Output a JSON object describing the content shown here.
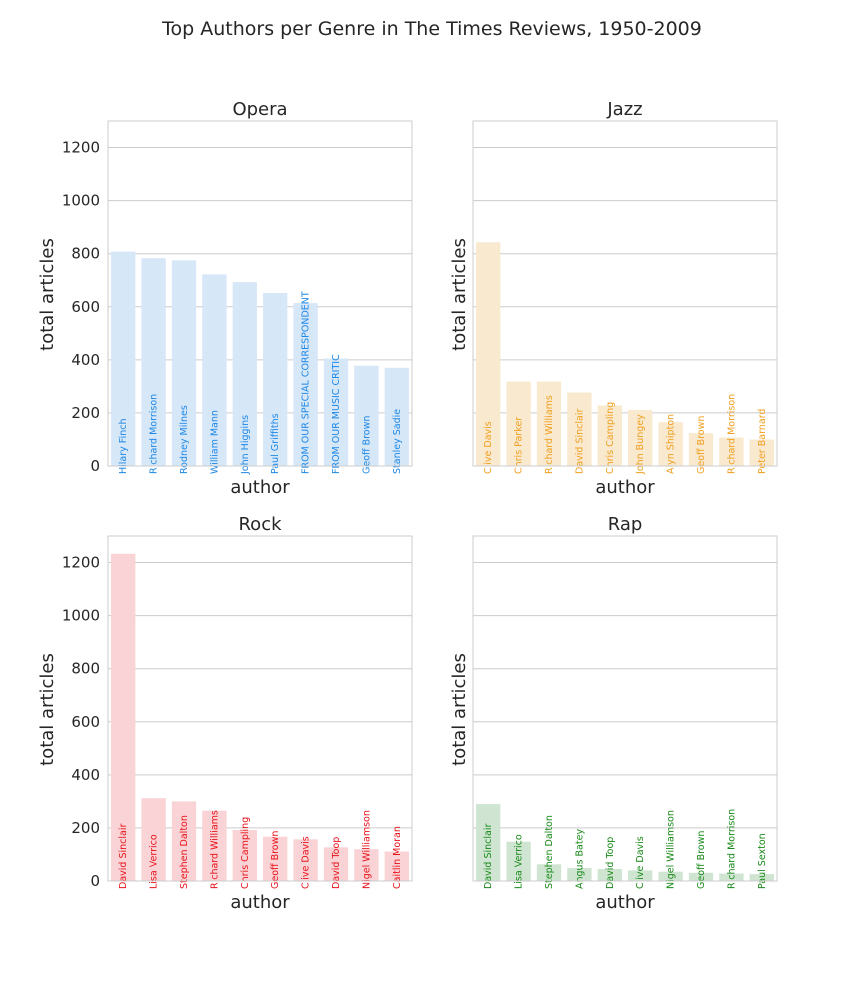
{
  "title": "Top Authors per Genre in The Times Reviews, 1950-2009",
  "chart_data": [
    {
      "type": "bar",
      "title": "Opera",
      "xlabel": "author",
      "ylabel": "total articles",
      "ylim": [
        0,
        1300
      ],
      "yticks": [
        0,
        200,
        400,
        600,
        800,
        1000,
        1200
      ],
      "grid": true,
      "bar_color": "#d6e7f8",
      "label_color": "#1e88e5",
      "categories": [
        "Hilary Finch",
        "Richard Morrison",
        "Rodney Milnes",
        "William Mann",
        "John Higgins",
        "Paul Griffiths",
        "FROM OUR SPECIAL CORRESPONDENT",
        "FROM OUR MUSIC CRITIC",
        "Geoff Brown",
        "Stanley Sadie"
      ],
      "values": [
        808,
        783,
        775,
        722,
        693,
        652,
        614,
        405,
        378,
        370
      ]
    },
    {
      "type": "bar",
      "title": "Jazz",
      "xlabel": "author",
      "ylabel": "total articles",
      "ylim": [
        0,
        1300
      ],
      "yticks": [
        0,
        200,
        400,
        600,
        800,
        1000,
        1200
      ],
      "grid": true,
      "bar_color": "#f8e9cf",
      "label_color": "#f0a020",
      "categories": [
        "Clive Davis",
        "Chris Parker",
        "Richard Williams",
        "David Sinclair",
        "Chris Campling",
        "John Bungey",
        "Alyn Shipton",
        "Geoff Brown",
        "Richard Morrison",
        "Peter Barnard"
      ],
      "values": [
        843,
        318,
        318,
        277,
        228,
        211,
        165,
        124,
        107,
        100
      ]
    },
    {
      "type": "bar",
      "title": "Rock",
      "xlabel": "author",
      "ylabel": "total articles",
      "ylim": [
        0,
        1300
      ],
      "yticks": [
        0,
        200,
        400,
        600,
        800,
        1000,
        1200
      ],
      "grid": true,
      "bar_color": "#f9d3d5",
      "label_color": "#e8141c",
      "categories": [
        "David Sinclair",
        "Lisa Verrico",
        "Stephen Dalton",
        "Richard Williams",
        "Chris Campling",
        "Geoff Brown",
        "Clive Davis",
        "David Toop",
        "Nigel Williamson",
        "Caitlin Moran"
      ],
      "values": [
        1233,
        312,
        300,
        265,
        192,
        167,
        157,
        127,
        120,
        111
      ]
    },
    {
      "type": "bar",
      "title": "Rap",
      "xlabel": "author",
      "ylabel": "total articles",
      "ylim": [
        0,
        1300
      ],
      "yticks": [
        0,
        200,
        400,
        600,
        800,
        1000,
        1200
      ],
      "grid": true,
      "bar_color": "#cfe5d2",
      "label_color": "#1a8a1a",
      "categories": [
        "David Sinclair",
        "Lisa Verrico",
        "Stephen Dalton",
        "Angus Batey",
        "David Toop",
        "Clive Davis",
        "Nigel Williamson",
        "Geoff Brown",
        "Richard Morrison",
        "Paul Sexton"
      ],
      "values": [
        290,
        148,
        63,
        49,
        45,
        40,
        35,
        31,
        28,
        26
      ]
    }
  ]
}
